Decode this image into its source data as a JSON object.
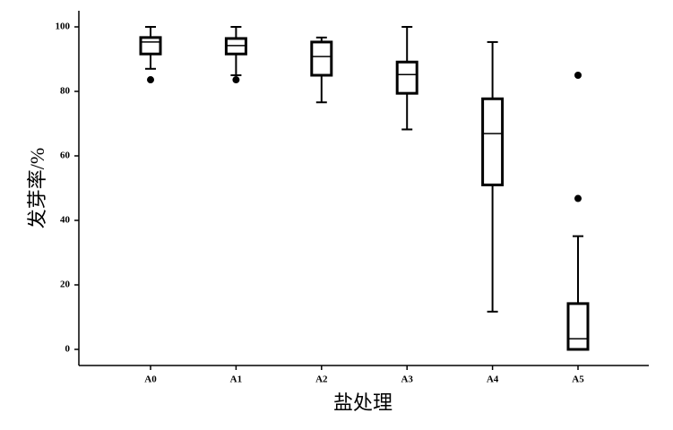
{
  "chart_data": {
    "type": "box",
    "x_label": "盐处理",
    "y_label": "发芽率/%",
    "categories": [
      "A0",
      "A1",
      "A2",
      "A3",
      "A4",
      "A5"
    ],
    "boxes": [
      {
        "min": 87,
        "q1": 91.6,
        "median": 95.3,
        "q3": 96.7,
        "max": 100,
        "outliers": [
          83.6
        ]
      },
      {
        "min": 85,
        "q1": 91.6,
        "median": 94.2,
        "q3": 96.4,
        "max": 100,
        "outliers": [
          83.6
        ]
      },
      {
        "min": 76.6,
        "q1": 85,
        "median": 90.8,
        "q3": 95.3,
        "max": 96.7,
        "outliers": []
      },
      {
        "min": 68.2,
        "q1": 79.4,
        "median": 85.2,
        "q3": 89.1,
        "max": 100,
        "outliers": []
      },
      {
        "min": 11.7,
        "q1": 51,
        "median": 66.9,
        "q3": 77.7,
        "max": 95.3,
        "outliers": []
      },
      {
        "min": 0,
        "q1": 0,
        "median": 3.3,
        "q3": 14.2,
        "max": 35.1,
        "outliers": [
          85,
          46.8
        ]
      }
    ],
    "color": "#000000",
    "ylim": [
      -5,
      105
    ],
    "yticks": [
      0,
      20,
      40,
      60,
      80,
      100
    ],
    "grid": false
  }
}
